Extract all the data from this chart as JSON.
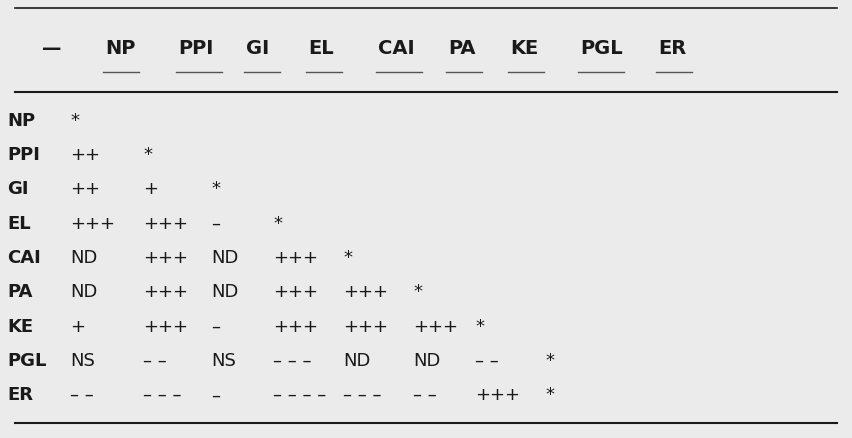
{
  "header_row": [
    "—",
    "NP",
    "PPI",
    "GI",
    "EL",
    "CAI",
    "PA",
    "KE",
    "PGL",
    "ER"
  ],
  "rows": [
    [
      "NP",
      "*",
      "",
      "",
      "",
      "",
      "",
      "",
      "",
      ""
    ],
    [
      "PPI",
      "++",
      "*",
      "",
      "",
      "",
      "",
      "",
      "",
      ""
    ],
    [
      "GI",
      "++",
      "+",
      "*",
      "",
      "",
      "",
      "",
      "",
      ""
    ],
    [
      "EL",
      "+++",
      "+++",
      "–",
      "*",
      "",
      "",
      "",
      "",
      ""
    ],
    [
      "CAI",
      "ND",
      "+++",
      "ND",
      "+++",
      "*",
      "",
      "",
      "",
      ""
    ],
    [
      "PA",
      "ND",
      "+++",
      "ND",
      "+++",
      "+++",
      "*",
      "",
      "",
      ""
    ],
    [
      "KE",
      "+",
      "+++",
      "–",
      "+++",
      "+++",
      "+++",
      "*",
      "",
      ""
    ],
    [
      "PGL",
      "NS",
      "– –",
      "NS",
      "– – –",
      "ND",
      "ND",
      "– –",
      "*",
      ""
    ],
    [
      "ER",
      "– –",
      "– – –",
      "–",
      "– – – –",
      "– – –",
      "– –",
      "+++",
      "*",
      ""
    ]
  ],
  "background_color": "#ebebeb",
  "text_color": "#1a1a1a",
  "header_fontsize": 14,
  "body_fontsize": 13,
  "col_x_inches": [
    0.42,
    1.05,
    1.78,
    2.46,
    3.08,
    3.78,
    4.48,
    5.1,
    5.8,
    6.58
  ],
  "fig_width": 8.52,
  "fig_height": 4.38,
  "dpi": 100
}
